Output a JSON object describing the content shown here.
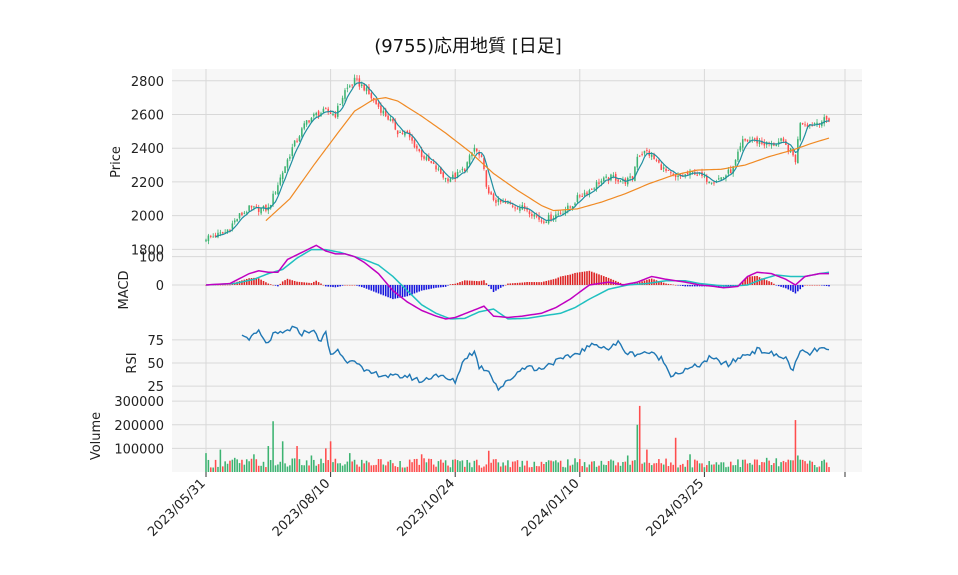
{
  "chart_data": {
    "type": "candlestick",
    "title": "(9755)応用地質 [日足]",
    "colors": {
      "up": "#3cb371",
      "down": "#ff4d4d",
      "ma_short": "#1f8fa0",
      "ma_long": "#f08a24",
      "macd": "#c000c0",
      "signal": "#20c0c0",
      "hist_up": "#dd2222",
      "hist_down": "#1515dd",
      "rsi": "#1f77b4",
      "panel_bg": "#f7f7f7",
      "grid": "#d8d8d8"
    },
    "x_ticks": [
      "2023/05/31",
      "2023/08/10",
      "2023/10/24",
      "2024/01/10",
      "2024/03/25"
    ],
    "price": {
      "ylabel": "Price",
      "ticks": [
        1800,
        2000,
        2200,
        2400,
        2600,
        2800
      ],
      "ylim": [
        1790,
        2870
      ],
      "close_keypoints": [
        [
          0,
          1870
        ],
        [
          4,
          1880
        ],
        [
          8,
          1900
        ],
        [
          14,
          2000
        ],
        [
          18,
          2040
        ],
        [
          26,
          2040
        ],
        [
          32,
          2260
        ],
        [
          36,
          2400
        ],
        [
          42,
          2560
        ],
        [
          46,
          2600
        ],
        [
          50,
          2620
        ],
        [
          54,
          2600
        ],
        [
          58,
          2740
        ],
        [
          62,
          2800
        ],
        [
          66,
          2760
        ],
        [
          70,
          2680
        ],
        [
          76,
          2580
        ],
        [
          80,
          2500
        ],
        [
          84,
          2480
        ],
        [
          90,
          2360
        ],
        [
          96,
          2280
        ],
        [
          100,
          2220
        ],
        [
          104,
          2230
        ],
        [
          108,
          2280
        ],
        [
          112,
          2400
        ],
        [
          115,
          2330
        ],
        [
          118,
          2120
        ],
        [
          122,
          2080
        ],
        [
          128,
          2060
        ],
        [
          134,
          2040
        ],
        [
          140,
          1970
        ],
        [
          144,
          1990
        ],
        [
          148,
          2020
        ],
        [
          152,
          2050
        ],
        [
          156,
          2120
        ],
        [
          160,
          2150
        ],
        [
          164,
          2200
        ],
        [
          170,
          2230
        ],
        [
          174,
          2200
        ],
        [
          178,
          2220
        ],
        [
          180,
          2360
        ],
        [
          184,
          2380
        ],
        [
          188,
          2320
        ],
        [
          192,
          2260
        ],
        [
          196,
          2220
        ],
        [
          200,
          2240
        ],
        [
          204,
          2260
        ],
        [
          208,
          2220
        ],
        [
          212,
          2210
        ],
        [
          216,
          2230
        ],
        [
          220,
          2280
        ],
        [
          224,
          2440
        ],
        [
          228,
          2450
        ],
        [
          232,
          2430
        ],
        [
          236,
          2420
        ],
        [
          240,
          2440
        ],
        [
          244,
          2380
        ],
        [
          246,
          2330
        ],
        [
          248,
          2560
        ],
        [
          252,
          2540
        ],
        [
          256,
          2560
        ],
        [
          260,
          2570
        ]
      ],
      "ma_long_keypoints": [
        [
          25,
          1970
        ],
        [
          35,
          2100
        ],
        [
          45,
          2300
        ],
        [
          55,
          2490
        ],
        [
          62,
          2620
        ],
        [
          70,
          2690
        ],
        [
          75,
          2700
        ],
        [
          80,
          2680
        ],
        [
          90,
          2590
        ],
        [
          100,
          2490
        ],
        [
          110,
          2380
        ],
        [
          120,
          2250
        ],
        [
          130,
          2150
        ],
        [
          140,
          2060
        ],
        [
          145,
          2030
        ],
        [
          155,
          2040
        ],
        [
          165,
          2080
        ],
        [
          175,
          2130
        ],
        [
          185,
          2190
        ],
        [
          195,
          2240
        ],
        [
          205,
          2270
        ],
        [
          215,
          2275
        ],
        [
          225,
          2300
        ],
        [
          235,
          2350
        ],
        [
          245,
          2390
        ],
        [
          253,
          2430
        ],
        [
          260,
          2460
        ]
      ]
    },
    "macd": {
      "ylabel": "MACD",
      "ticks": [
        0,
        100
      ],
      "ylim": [
        -145,
        120
      ],
      "macd_keypoints": [
        [
          0,
          0
        ],
        [
          10,
          5
        ],
        [
          18,
          40
        ],
        [
          22,
          50
        ],
        [
          26,
          45
        ],
        [
          30,
          45
        ],
        [
          34,
          90
        ],
        [
          40,
          115
        ],
        [
          46,
          140
        ],
        [
          50,
          120
        ],
        [
          54,
          110
        ],
        [
          58,
          110
        ],
        [
          62,
          100
        ],
        [
          66,
          80
        ],
        [
          72,
          40
        ],
        [
          78,
          -20
        ],
        [
          84,
          -60
        ],
        [
          90,
          -90
        ],
        [
          96,
          -110
        ],
        [
          100,
          -120
        ],
        [
          104,
          -115
        ],
        [
          110,
          -95
        ],
        [
          116,
          -75
        ],
        [
          120,
          -110
        ],
        [
          126,
          -115
        ],
        [
          132,
          -110
        ],
        [
          140,
          -100
        ],
        [
          146,
          -80
        ],
        [
          152,
          -50
        ],
        [
          160,
          0
        ],
        [
          168,
          10
        ],
        [
          174,
          0
        ],
        [
          180,
          10
        ],
        [
          186,
          30
        ],
        [
          192,
          20
        ],
        [
          200,
          10
        ],
        [
          206,
          0
        ],
        [
          212,
          -5
        ],
        [
          216,
          -10
        ],
        [
          222,
          -5
        ],
        [
          226,
          30
        ],
        [
          230,
          45
        ],
        [
          236,
          40
        ],
        [
          242,
          20
        ],
        [
          246,
          0
        ],
        [
          250,
          30
        ],
        [
          256,
          40
        ],
        [
          260,
          40
        ]
      ],
      "signal_keypoints": [
        [
          0,
          0
        ],
        [
          12,
          5
        ],
        [
          20,
          20
        ],
        [
          26,
          40
        ],
        [
          32,
          55
        ],
        [
          38,
          95
        ],
        [
          44,
          125
        ],
        [
          50,
          125
        ],
        [
          56,
          115
        ],
        [
          62,
          100
        ],
        [
          66,
          90
        ],
        [
          72,
          70
        ],
        [
          78,
          30
        ],
        [
          84,
          -20
        ],
        [
          90,
          -70
        ],
        [
          96,
          -100
        ],
        [
          102,
          -120
        ],
        [
          108,
          -118
        ],
        [
          114,
          -95
        ],
        [
          120,
          -85
        ],
        [
          126,
          -120
        ],
        [
          134,
          -118
        ],
        [
          140,
          -110
        ],
        [
          148,
          -100
        ],
        [
          154,
          -80
        ],
        [
          160,
          -50
        ],
        [
          168,
          -15
        ],
        [
          176,
          0
        ],
        [
          184,
          5
        ],
        [
          192,
          15
        ],
        [
          200,
          15
        ],
        [
          206,
          5
        ],
        [
          212,
          0
        ],
        [
          218,
          -5
        ],
        [
          226,
          0
        ],
        [
          232,
          20
        ],
        [
          238,
          35
        ],
        [
          244,
          30
        ],
        [
          250,
          30
        ],
        [
          256,
          40
        ],
        [
          260,
          45
        ]
      ]
    },
    "rsi": {
      "ylabel": "RSI",
      "ticks": [
        25,
        50,
        75
      ],
      "ylim": [
        10,
        90
      ],
      "start_index": 15,
      "keypoints": [
        [
          15,
          79
        ],
        [
          19,
          77
        ],
        [
          22,
          84
        ],
        [
          25,
          70
        ],
        [
          28,
          80
        ],
        [
          32,
          82
        ],
        [
          36,
          88
        ],
        [
          40,
          82
        ],
        [
          44,
          86
        ],
        [
          48,
          74
        ],
        [
          50,
          82
        ],
        [
          52,
          58
        ],
        [
          55,
          65
        ],
        [
          58,
          52
        ],
        [
          62,
          55
        ],
        [
          66,
          40
        ],
        [
          72,
          38
        ],
        [
          78,
          35
        ],
        [
          84,
          36
        ],
        [
          90,
          30
        ],
        [
          96,
          38
        ],
        [
          100,
          33
        ],
        [
          104,
          30
        ],
        [
          108,
          56
        ],
        [
          112,
          62
        ],
        [
          114,
          46
        ],
        [
          118,
          42
        ],
        [
          122,
          22
        ],
        [
          126,
          30
        ],
        [
          130,
          40
        ],
        [
          134,
          48
        ],
        [
          138,
          42
        ],
        [
          144,
          50
        ],
        [
          150,
          55
        ],
        [
          156,
          62
        ],
        [
          160,
          68
        ],
        [
          164,
          70
        ],
        [
          168,
          65
        ],
        [
          172,
          72
        ],
        [
          176,
          60
        ],
        [
          180,
          60
        ],
        [
          184,
          62
        ],
        [
          190,
          55
        ],
        [
          194,
          38
        ],
        [
          198,
          40
        ],
        [
          202,
          44
        ],
        [
          206,
          48
        ],
        [
          210,
          55
        ],
        [
          214,
          52
        ],
        [
          218,
          48
        ],
        [
          222,
          55
        ],
        [
          226,
          60
        ],
        [
          230,
          64
        ],
        [
          234,
          62
        ],
        [
          238,
          58
        ],
        [
          242,
          55
        ],
        [
          245,
          42
        ],
        [
          248,
          62
        ],
        [
          252,
          60
        ],
        [
          256,
          66
        ],
        [
          260,
          63
        ]
      ]
    },
    "volume": {
      "ylabel": "Volume",
      "ticks": [
        100000,
        200000,
        300000
      ],
      "ylim": [
        0,
        305000
      ],
      "base": 45000,
      "spikes": [
        [
          0,
          80000
        ],
        [
          6,
          95000
        ],
        [
          12,
          60000
        ],
        [
          20,
          75000
        ],
        [
          26,
          110000
        ],
        [
          28,
          215000
        ],
        [
          32,
          130000
        ],
        [
          38,
          110000
        ],
        [
          44,
          70000
        ],
        [
          50,
          100000
        ],
        [
          52,
          130000
        ],
        [
          60,
          80000
        ],
        [
          72,
          55000
        ],
        [
          90,
          75000
        ],
        [
          118,
          90000
        ],
        [
          176,
          70000
        ],
        [
          180,
          200000
        ],
        [
          181,
          280000
        ],
        [
          184,
          95000
        ],
        [
          196,
          145000
        ],
        [
          202,
          75000
        ],
        [
          234,
          60000
        ],
        [
          246,
          220000
        ],
        [
          247,
          70000
        ]
      ]
    },
    "n_days": 261,
    "tick_indices": [
      0,
      52,
      104,
      156,
      208
    ]
  }
}
